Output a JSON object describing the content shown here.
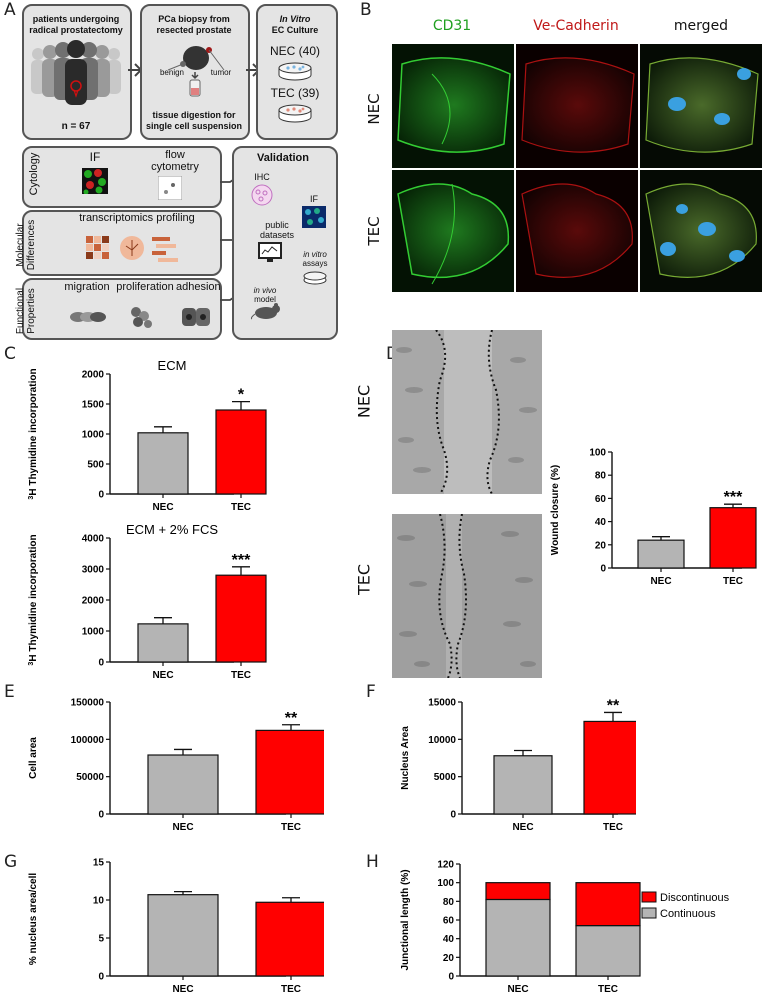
{
  "panels": {
    "A": {
      "letter": "A",
      "patients": {
        "title": "patients undergoing radical prostatectomy",
        "n": "n = 67"
      },
      "biopsy": {
        "title": "PCa biopsy from resected prostate",
        "benign": "benign",
        "tumor": "tumor",
        "digestion": "tissue digestion for single cell suspension"
      },
      "culture": {
        "title_italic": "In Vitro",
        "title": "EC Culture",
        "nec": "NEC (40)",
        "tec": "TEC (39)"
      },
      "cytology": {
        "label": "Cytology",
        "if": "IF",
        "flow": "flow cytometry"
      },
      "molecular": {
        "label": "Molecular Differences",
        "profiling": "transcriptomics profiling"
      },
      "functional": {
        "label": "Functional Properties",
        "migration": "migration",
        "proliferation": "proliferation",
        "adhesion": "adhesion"
      },
      "validation": {
        "title": "Validation",
        "ihc": "IHC",
        "if": "IF",
        "public": "public datasets",
        "invitro": "in vitro",
        "assays": "assays",
        "invivo": "in vivo",
        "model": "model"
      }
    },
    "B": {
      "letter": "B",
      "col1": "CD31",
      "col2": "Ve-Cadherin",
      "col3": "merged",
      "row1": "NEC",
      "row2": "TEC"
    },
    "C": {
      "letter": "C"
    },
    "D": {
      "letter": "D",
      "row1": "NEC",
      "row2": "TEC"
    },
    "E": {
      "letter": "E"
    },
    "F": {
      "letter": "F"
    },
    "G": {
      "letter": "G"
    },
    "H": {
      "letter": "H"
    }
  },
  "colors": {
    "nec_bar": "#b4b4b4",
    "tec_bar": "#ff0000",
    "box_fill": "#e4e4e4"
  },
  "chart_data": [
    {
      "id": "C-top",
      "type": "bar",
      "title": "ECM",
      "ylabel": "3H Thymidine incorporation",
      "ylim": [
        0,
        2000
      ],
      "yticks": [
        0,
        500,
        1000,
        1500,
        2000
      ],
      "categories": [
        "NEC",
        "TEC"
      ],
      "values": [
        1020,
        1400
      ],
      "errors": [
        100,
        140
      ],
      "significance": "*"
    },
    {
      "id": "C-bottom",
      "type": "bar",
      "title": "ECM + 2% FCS",
      "ylabel": "3H Thymidine incorporation",
      "ylim": [
        0,
        4000
      ],
      "yticks": [
        0,
        1000,
        2000,
        3000,
        4000
      ],
      "categories": [
        "NEC",
        "TEC"
      ],
      "values": [
        1230,
        2800
      ],
      "errors": [
        200,
        270
      ],
      "significance": "***"
    },
    {
      "id": "D",
      "type": "bar",
      "title": "",
      "ylabel": "Wound closure (%)",
      "ylim": [
        0,
        100
      ],
      "yticks": [
        0,
        20,
        40,
        60,
        80,
        100
      ],
      "categories": [
        "NEC",
        "TEC"
      ],
      "values": [
        24,
        52
      ],
      "errors": [
        3,
        3
      ],
      "significance": "***"
    },
    {
      "id": "E",
      "type": "bar",
      "title": "",
      "ylabel": "Cell area",
      "ylim": [
        0,
        150000
      ],
      "yticks": [
        0,
        50000,
        100000,
        150000
      ],
      "categories": [
        "NEC",
        "TEC"
      ],
      "values": [
        79000,
        112000
      ],
      "errors": [
        7500,
        7500
      ],
      "significance": "**"
    },
    {
      "id": "F",
      "type": "bar",
      "title": "",
      "ylabel": "Nucleus Area",
      "ylim": [
        0,
        15000
      ],
      "yticks": [
        0,
        5000,
        10000,
        15000
      ],
      "categories": [
        "NEC",
        "TEC"
      ],
      "values": [
        7800,
        12400
      ],
      "errors": [
        700,
        1200
      ],
      "significance": "**"
    },
    {
      "id": "G",
      "type": "bar",
      "title": "",
      "ylabel": "% nucleus area/cell",
      "ylim": [
        0,
        15
      ],
      "yticks": [
        0,
        5,
        10,
        15
      ],
      "categories": [
        "NEC",
        "TEC"
      ],
      "values": [
        10.7,
        9.7
      ],
      "errors": [
        0.4,
        0.6
      ],
      "significance": ""
    },
    {
      "id": "H",
      "type": "bar",
      "stacked": true,
      "title": "",
      "ylabel": "Junctional length (%)",
      "ylim": [
        0,
        120
      ],
      "yticks": [
        0,
        20,
        40,
        60,
        80,
        100,
        120
      ],
      "categories": [
        "NEC",
        "TEC"
      ],
      "series": [
        {
          "name": "Continuous",
          "values": [
            82,
            54
          ],
          "color": "#b4b4b4"
        },
        {
          "name": "Discontinuous",
          "values": [
            18,
            46
          ],
          "color": "#ff0000"
        }
      ]
    }
  ]
}
